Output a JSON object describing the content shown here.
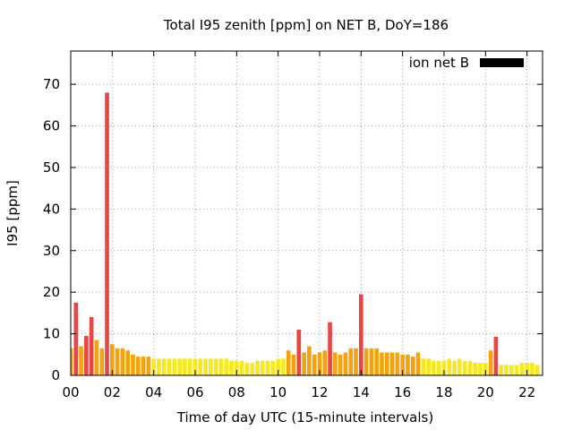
{
  "chart_data": {
    "type": "bar",
    "title": "Total I95 zenith [ppm] on NET B, DoY=186",
    "xlabel": "Time of day UTC (15-minute intervals)",
    "ylabel": "I95 [ppm]",
    "xlim": [
      0,
      22.75
    ],
    "ylim": [
      0,
      78
    ],
    "x_ticks": [
      0,
      2,
      4,
      6,
      8,
      10,
      12,
      14,
      16,
      18,
      20,
      22
    ],
    "x_tick_labels": [
      "00",
      "02",
      "04",
      "06",
      "08",
      "10",
      "12",
      "14",
      "16",
      "18",
      "20",
      "22"
    ],
    "y_ticks": [
      0,
      10,
      20,
      30,
      40,
      50,
      60,
      70
    ],
    "y_tick_labels": [
      "0",
      "10",
      "20",
      "30",
      "40",
      "50",
      "60",
      "70"
    ],
    "grid": true,
    "legend": {
      "position": "top-right",
      "entries": [
        "ion net B"
      ]
    },
    "bar_width_hours": 0.2,
    "series": [
      {
        "name": "ion net B",
        "start_hour": 0,
        "step_hours": 0.25,
        "values": [
          6.5,
          17.5,
          7.0,
          9.5,
          14.0,
          8.5,
          6.5,
          68.0,
          7.5,
          6.5,
          6.5,
          6.0,
          5.0,
          4.5,
          4.5,
          4.5,
          4.0,
          4.0,
          4.0,
          4.0,
          4.0,
          4.0,
          4.0,
          4.0,
          4.0,
          4.0,
          4.0,
          4.0,
          4.0,
          4.0,
          4.0,
          3.5,
          3.5,
          3.5,
          3.0,
          3.0,
          3.5,
          3.5,
          3.5,
          3.5,
          4.0,
          4.0,
          6.0,
          5.0,
          11.0,
          5.5,
          7.0,
          5.0,
          5.5,
          6.0,
          12.8,
          5.5,
          5.0,
          5.5,
          6.5,
          6.5,
          19.5,
          6.5,
          6.5,
          6.5,
          5.5,
          5.5,
          5.5,
          5.5,
          5.0,
          5.0,
          4.5,
          5.5,
          4.0,
          4.0,
          3.5,
          3.5,
          3.5,
          4.0,
          3.5,
          4.0,
          3.5,
          3.5,
          3.0,
          3.0,
          3.0,
          6.0,
          9.3,
          2.5,
          2.5,
          2.5,
          2.5,
          3.0,
          3.0,
          3.0,
          2.5
        ]
      }
    ],
    "colors": {
      "high": "#e84545",
      "medium": "#f5a20f",
      "low": "#f7e81e",
      "legend": "#000000",
      "grid": "#a0a0a0"
    },
    "color_thresholds": {
      "high_above": 8.5,
      "low_below": 4.2
    }
  }
}
